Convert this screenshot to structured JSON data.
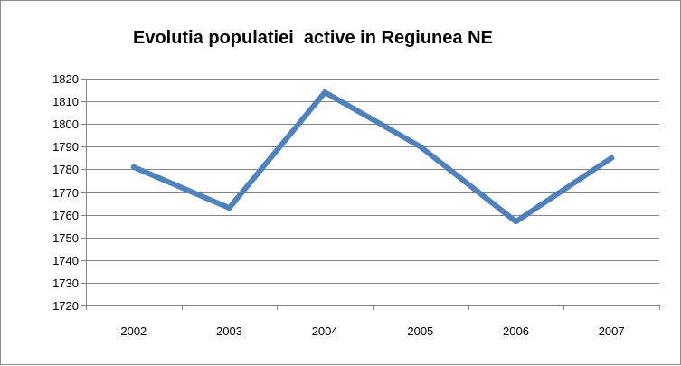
{
  "chart_data": {
    "type": "line",
    "title": "Evolutia populatiei  active in Regiunea NE",
    "xlabel": "",
    "ylabel": "",
    "categories": [
      "2002",
      "2003",
      "2004",
      "2005",
      "2006",
      "2007"
    ],
    "series": [
      {
        "values": [
          1781,
          1763,
          1814,
          1790,
          1757,
          1785
        ]
      }
    ],
    "ylim": [
      1720,
      1820
    ],
    "yticks": [
      1720,
      1730,
      1740,
      1750,
      1760,
      1770,
      1780,
      1790,
      1800,
      1810,
      1820
    ],
    "grid": true,
    "legend": "none",
    "line_color": "#4f81bd",
    "grid_color": "#868686"
  }
}
